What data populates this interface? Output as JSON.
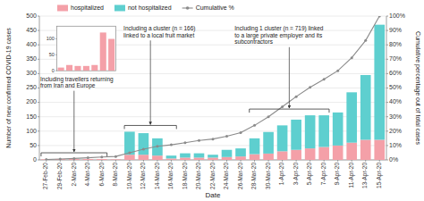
{
  "chart_data": [
    {
      "type": "bar",
      "stacked": true,
      "categories": [
        "27-Feb-20",
        "29-Feb-20",
        "2-Mar-20",
        "4-Mar-20",
        "6-Mar-20",
        "8-Mar-20",
        "10-Mar-20",
        "12-Mar-20",
        "14-Mar-20",
        "16-Mar-20",
        "18-Mar-20",
        "20-Mar-20",
        "22-Mar-20",
        "24-Mar-20",
        "26-Mar-20",
        "28-Mar-20",
        "30-Mar-20",
        "1-Apr-20",
        "3-Apr-20",
        "5-Apr-20",
        "7-Apr-20",
        "9-Apr-20",
        "11-Apr-20",
        "13-Apr-20",
        "15-Apr-20"
      ],
      "series": [
        {
          "name": "hospitalized",
          "color": "#F4A0A8",
          "values": [
            2,
            3,
            3,
            3,
            3,
            2,
            18,
            18,
            15,
            5,
            8,
            8,
            8,
            10,
            12,
            20,
            22,
            30,
            35,
            40,
            45,
            50,
            60,
            70,
            70
          ]
        },
        {
          "name": "not hospitalized",
          "color": "#5ECFCF",
          "values": [
            0,
            0,
            0,
            0,
            0,
            0,
            80,
            75,
            60,
            10,
            15,
            15,
            10,
            25,
            28,
            55,
            75,
            90,
            105,
            115,
            110,
            115,
            175,
            225,
            400
          ]
        },
        {
          "name": "Cumulative %",
          "type": "line",
          "axis": "y2",
          "color": "#8B8B8B",
          "marker": "circle",
          "values": [
            0.3,
            0.6,
            1.0,
            1.5,
            2.0,
            2.4,
            5.0,
            7.5,
            9.5,
            10.5,
            12.0,
            13.5,
            14.5,
            16.5,
            19.0,
            24.0,
            30.0,
            37.0,
            44.0,
            50.5,
            56.0,
            62.0,
            71.0,
            83.0,
            100.0
          ]
        }
      ],
      "xlabel": "Date",
      "ylabel": "Number of new confirmed COVID-19 cases",
      "y2label": "Cumulative percentage out of total cases",
      "ylim": [
        0,
        500
      ],
      "yticks": [
        0,
        50,
        100,
        150,
        200,
        250,
        300,
        350,
        400,
        450,
        500
      ],
      "y2lim": [
        0,
        100
      ],
      "y2ticks": [
        {
          "value": 0,
          "label": "0%"
        },
        {
          "value": 10,
          "label": "10%"
        },
        {
          "value": 20,
          "label": "20%"
        },
        {
          "value": 30,
          "label": "30%"
        },
        {
          "value": 40,
          "label": "40%"
        },
        {
          "value": 50,
          "label": "50%"
        },
        {
          "value": 60,
          "label": "60%"
        },
        {
          "value": 70,
          "label": "70%"
        },
        {
          "value": 80,
          "label": "80%"
        },
        {
          "value": 90,
          "label": "90%"
        },
        {
          "value": 100,
          "label": "100%"
        }
      ],
      "grid": true,
      "legend": "upper left",
      "annotations": [
        "Including travellers returning\nfrom Iran and Europe",
        "Including a cluster (n = 166)\nlinked to a local fruit market",
        "Including 1 cluster (n = 719) linked\nto a large private employer and its\nsubcontractors"
      ]
    },
    {
      "type": "bar",
      "values": [
        10,
        18,
        15,
        15,
        18,
        120,
        100
      ],
      "color": "#F4A0A8",
      "ylim": [
        0,
        140
      ],
      "yticks": [
        0,
        50,
        100
      ],
      "tick_labels": "y"
    }
  ]
}
